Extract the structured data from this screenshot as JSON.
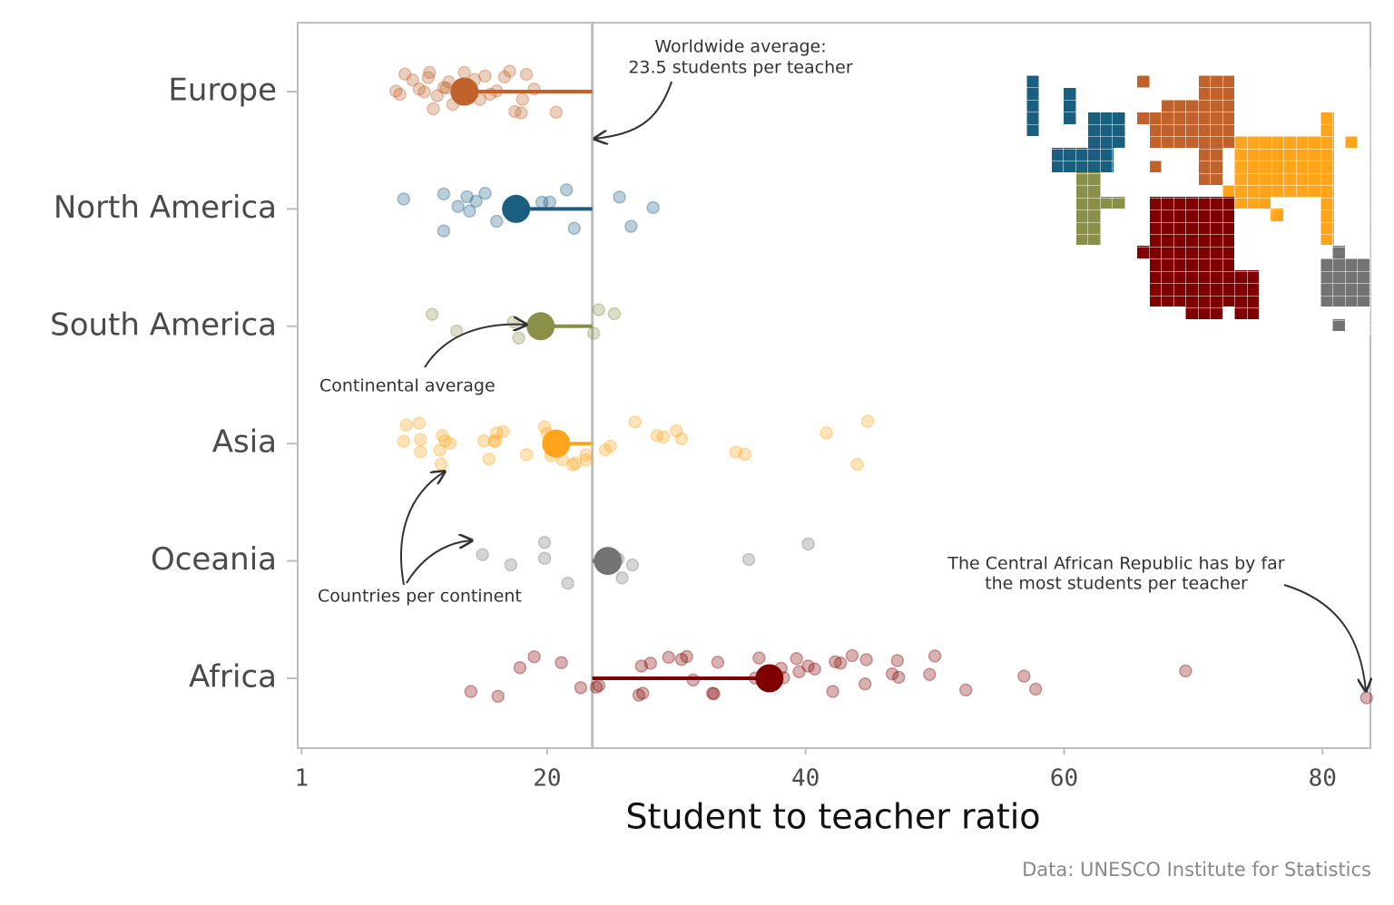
{
  "chart_data": {
    "type": "strip",
    "categories": [
      "Europe",
      "North America",
      "South America",
      "Asia",
      "Oceania",
      "Africa"
    ],
    "colors": [
      "#c0622b",
      "#1a5f80",
      "#8a9048",
      "#ffa41b",
      "#737373",
      "#7e0000"
    ],
    "values": [
      [
        8.3,
        8.6,
        9.0,
        9.6,
        10.1,
        10.5,
        10.9,
        11.2,
        11.5,
        12.0,
        12.4,
        12.7,
        13.3,
        13.6,
        14.0,
        14.4,
        14.8,
        15.2,
        15.6,
        16.1,
        16.7,
        17.1,
        17.5,
        18.0,
        18.4,
        19.0,
        20.7,
        10.8,
        12.2,
        14.2,
        18.1
      ],
      [
        8.9,
        12.0,
        12.0,
        13.1,
        13.8,
        14.0,
        14.5,
        15.2,
        16.1,
        19.6,
        20.2,
        21.5,
        22.1,
        25.6,
        26.5,
        28.2
      ],
      [
        11.1,
        13.0,
        17.4,
        17.8,
        23.6,
        24.0,
        25.2
      ],
      [
        8.9,
        9.1,
        10.1,
        10.2,
        10.2,
        11.7,
        11.8,
        11.9,
        12.1,
        12.5,
        15.1,
        15.5,
        15.9,
        16.0,
        16.1,
        16.6,
        18.4,
        19.8,
        20.0,
        20.3,
        21.2,
        22.0,
        22.2,
        23.0,
        23.0,
        24.5,
        24.9,
        26.8,
        28.5,
        29.0,
        30.0,
        30.4,
        34.6,
        35.3,
        41.6,
        44.0,
        44.8
      ],
      [
        15.0,
        17.2,
        19.8,
        19.8,
        21.6,
        25.5,
        25.8,
        26.6,
        35.6,
        40.2
      ],
      [
        14.1,
        16.2,
        17.9,
        19.0,
        21.1,
        22.6,
        23.8,
        24.0,
        27.1,
        27.3,
        27.4,
        28.0,
        29.4,
        30.4,
        30.8,
        31.3,
        32.8,
        32.9,
        33.2,
        36.1,
        36.4,
        38.1,
        38.3,
        39.3,
        39.5,
        40.2,
        40.7,
        42.1,
        42.3,
        42.7,
        43.6,
        44.6,
        44.7,
        46.7,
        47.1,
        47.2,
        49.6,
        50.0,
        52.4,
        56.9,
        57.8,
        69.4,
        83.4
      ]
    ],
    "averages": [
      13.6,
      17.6,
      19.5,
      20.7,
      24.7,
      37.2
    ],
    "world_average": 23.5,
    "xlim": [
      0.7,
      83.7
    ],
    "xticks": [
      1,
      20,
      40,
      60,
      80
    ],
    "x_label": "Student to teacher ratio",
    "caption": "Data: UNESCO Institute for Statistics",
    "annotations": {
      "world": [
        "Worldwide average:",
        "23.5 students per teacher"
      ],
      "continent": "Continental average",
      "countries": "Countries per continent",
      "car": [
        "The Central African Republic has by far",
        "the most students per teacher"
      ]
    }
  }
}
